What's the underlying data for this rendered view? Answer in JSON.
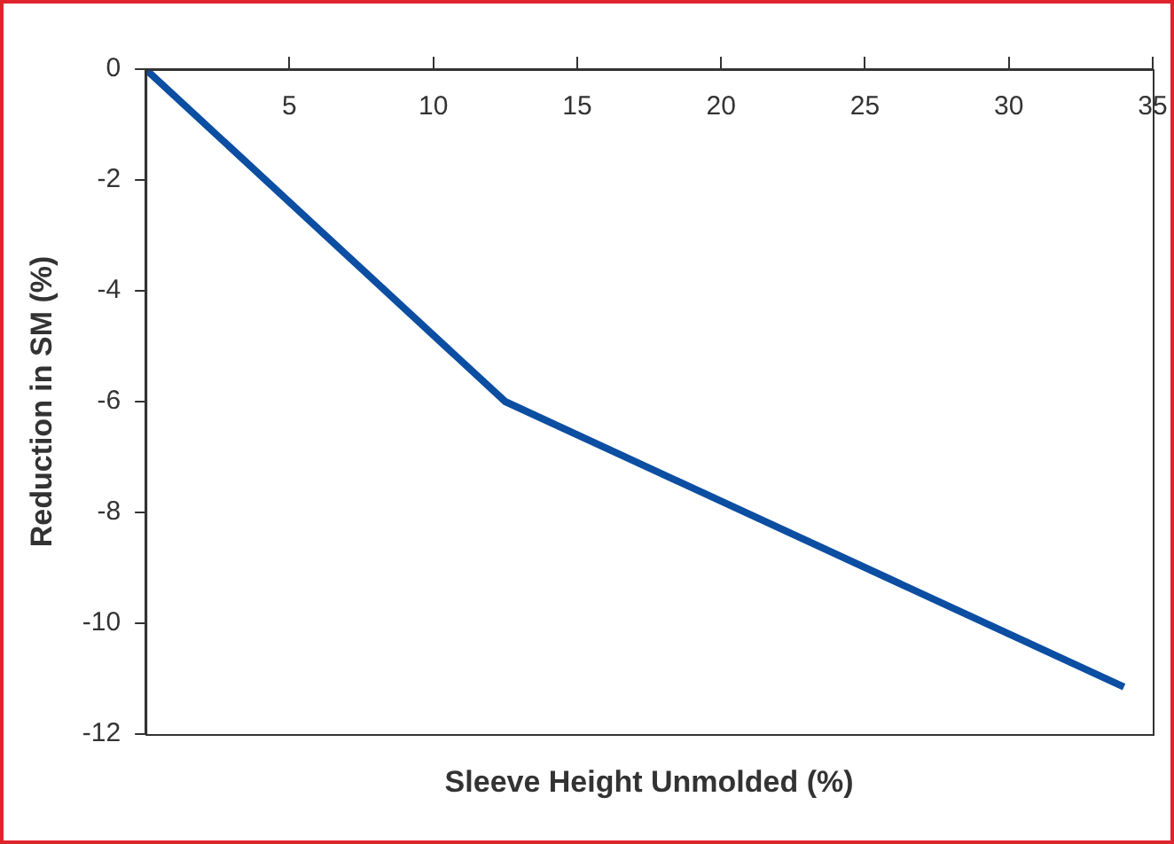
{
  "chart_data": {
    "type": "line",
    "xlabel": "Sleeve Height Unmolded (%)",
    "ylabel": "Reduction in SM (%)",
    "x": [
      0,
      12.5,
      34
    ],
    "series": [
      {
        "color": "#0b4ea2",
        "values": [
          0,
          -6,
          -11.15
        ]
      }
    ],
    "xlim": [
      0,
      35
    ],
    "xticks": [
      5,
      10,
      15,
      20,
      25,
      30,
      35
    ],
    "ylim": [
      -12,
      0
    ],
    "yticks": [
      -12,
      -10,
      -8,
      -6,
      -4,
      -2,
      0
    ],
    "grid": false,
    "legend": false,
    "marker": "none",
    "line_style": "solid"
  }
}
